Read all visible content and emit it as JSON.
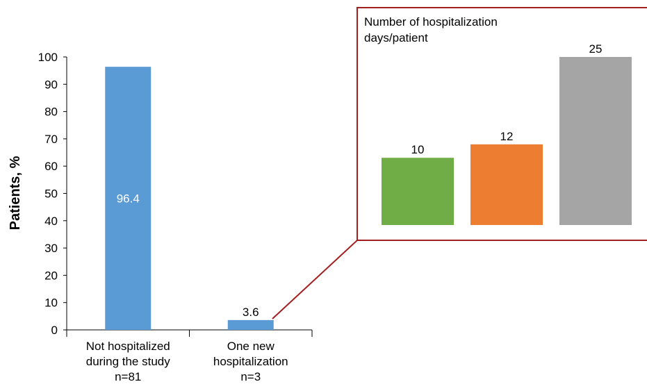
{
  "chart_data": [
    {
      "type": "bar",
      "title": "",
      "xlabel": "",
      "ylabel": "Patients, %",
      "ylim": [
        0,
        100
      ],
      "yticks": [
        0,
        10,
        20,
        30,
        40,
        50,
        60,
        70,
        80,
        90,
        100
      ],
      "grid": false,
      "categories": [
        [
          "Not hospitalized",
          "during the study",
          "n=81"
        ],
        [
          "One new",
          "hospitalization",
          "n=3"
        ]
      ],
      "values": [
        96.4,
        3.6
      ],
      "data_labels": [
        "96.4",
        "3.6"
      ],
      "colors": {
        "bar": "#5b9bd5",
        "inside_label": "#ffffff"
      }
    },
    {
      "type": "bar",
      "title": [
        "Number of hospitalization",
        "days/patient"
      ],
      "categories": [
        "",
        "",
        ""
      ],
      "values": [
        10,
        12,
        25
      ],
      "data_labels": [
        "10",
        "12",
        "25"
      ],
      "colors": [
        "#70ad47",
        "#ed7d31",
        "#a5a5a5"
      ],
      "axes_visible": false,
      "zoom_of": "One new hospitalization",
      "border_color": "#a31f1f"
    }
  ]
}
